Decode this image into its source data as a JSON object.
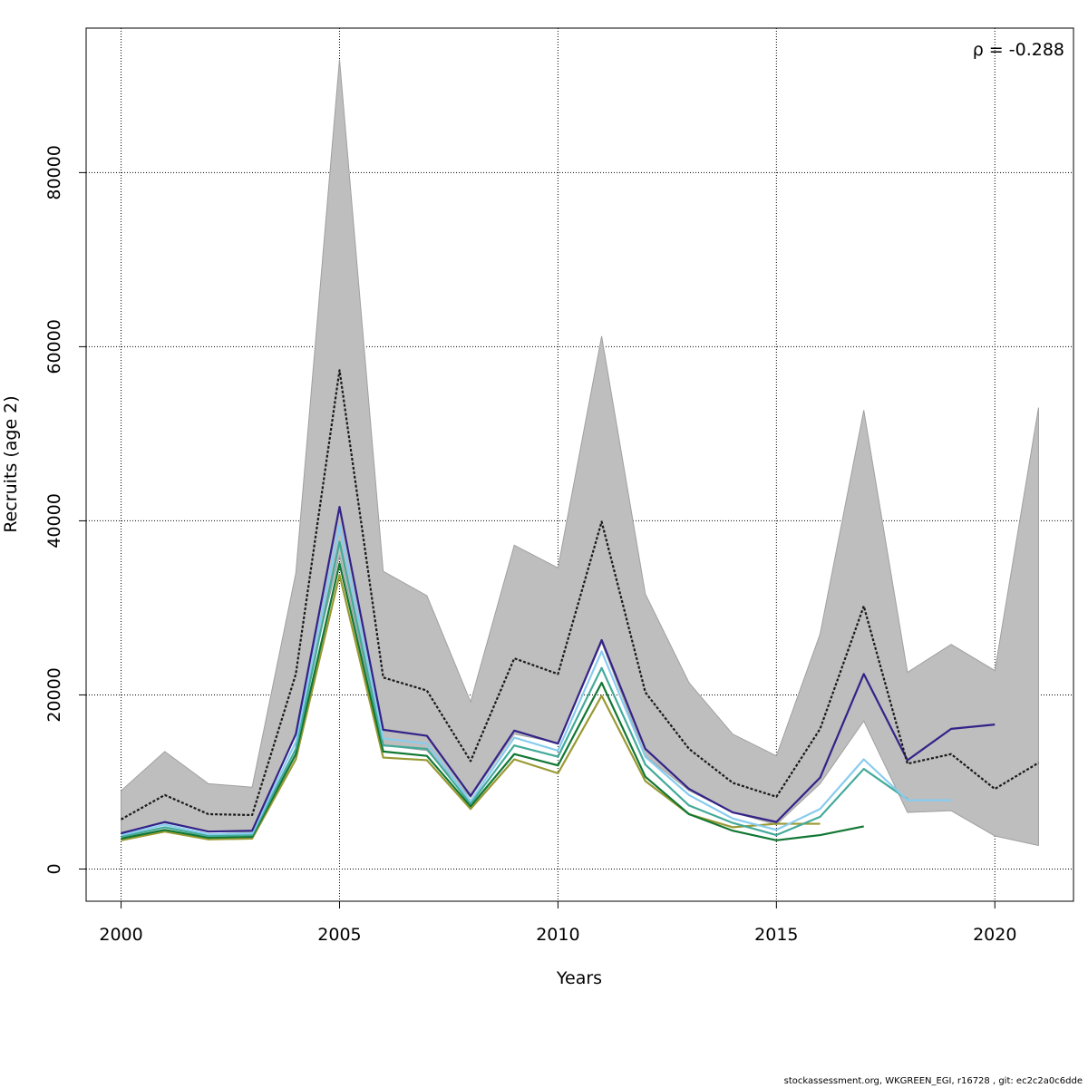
{
  "chart_data": {
    "type": "line",
    "xlabel": "Years",
    "ylabel": "Recruits (age 2)",
    "xlim": [
      1999.2,
      2021.8
    ],
    "ylim": [
      -3700,
      96600
    ],
    "x_ticks": [
      2000,
      2005,
      2010,
      2015,
      2020
    ],
    "y_ticks": [
      0,
      20000,
      40000,
      60000,
      80000
    ],
    "grid": true,
    "annotation": "ρ = -0.288",
    "confidence_band": {
      "color": "#bebebe",
      "x": [
        2000,
        2001,
        2002,
        2003,
        2004,
        2005,
        2006,
        2007,
        2008,
        2009,
        2010,
        2011,
        2012,
        2013,
        2014,
        2015,
        2016,
        2017,
        2018,
        2019,
        2020,
        2021
      ],
      "lower": [
        4200,
        5300,
        4300,
        4200,
        15500,
        36000,
        14200,
        13600,
        8200,
        15500,
        14500,
        26000,
        13000,
        9000,
        6500,
        5100,
        9800,
        17000,
        6500,
        6700,
        3800,
        2700
      ],
      "upper": [
        9000,
        13500,
        9800,
        9400,
        34000,
        93000,
        34200,
        31400,
        19200,
        37200,
        34600,
        61200,
        31600,
        21400,
        15500,
        13000,
        27000,
        52700,
        22600,
        25800,
        22800,
        53000
      ]
    },
    "series": [
      {
        "color": "#1a1a1a",
        "dash": true,
        "x": [
          2000,
          2001,
          2002,
          2003,
          2004,
          2005,
          2006,
          2007,
          2008,
          2009,
          2010,
          2011,
          2012,
          2013,
          2014,
          2015,
          2016,
          2017,
          2018,
          2019,
          2020,
          2021
        ],
        "values": [
          5700,
          8500,
          6300,
          6200,
          22400,
          57300,
          22000,
          20500,
          12400,
          24200,
          22400,
          39900,
          20300,
          13800,
          9900,
          8300,
          16100,
          30200,
          12100,
          13200,
          9200,
          12200
        ]
      },
      {
        "color": "#332288",
        "x": [
          2000,
          2001,
          2002,
          2003,
          2004,
          2005,
          2006,
          2007,
          2008,
          2009,
          2010,
          2011,
          2012,
          2013,
          2014,
          2015,
          2016,
          2017,
          2018,
          2019,
          2020
        ],
        "values": [
          4100,
          5400,
          4300,
          4400,
          15500,
          41600,
          16000,
          15300,
          8400,
          15900,
          14400,
          26300,
          13800,
          9200,
          6500,
          5400,
          10500,
          22400,
          12500,
          16100,
          16600
        ]
      },
      {
        "color": "#88ccee",
        "x": [
          2000,
          2001,
          2002,
          2003,
          2004,
          2005,
          2006,
          2007,
          2008,
          2009,
          2010,
          2011,
          2012,
          2013,
          2014,
          2015,
          2016,
          2017,
          2018,
          2019
        ],
        "values": [
          3900,
          5100,
          4000,
          4100,
          14600,
          39500,
          15000,
          14400,
          7800,
          15100,
          13600,
          25000,
          12900,
          8500,
          5800,
          4500,
          6900,
          12600,
          7900,
          7900
        ]
      },
      {
        "color": "#44aa99",
        "x": [
          2000,
          2001,
          2002,
          2003,
          2004,
          2005,
          2006,
          2007,
          2008,
          2009,
          2010,
          2011,
          2012,
          2013,
          2014,
          2015,
          2016,
          2017,
          2018
        ],
        "values": [
          3700,
          4800,
          3800,
          3900,
          13800,
          37600,
          14200,
          13800,
          7500,
          14200,
          12900,
          23100,
          12000,
          7300,
          5300,
          3900,
          6000,
          11500,
          8000
        ]
      },
      {
        "color": "#117733",
        "x": [
          2000,
          2001,
          2002,
          2003,
          2004,
          2005,
          2006,
          2007,
          2008,
          2009,
          2010,
          2011,
          2012,
          2013,
          2014,
          2015,
          2016,
          2017
        ],
        "values": [
          3500,
          4500,
          3600,
          3700,
          13200,
          35100,
          13500,
          13000,
          7200,
          13200,
          11900,
          21400,
          10600,
          6300,
          4400,
          3300,
          3900,
          4900
        ]
      },
      {
        "color": "#999933",
        "x": [
          2000,
          2001,
          2002,
          2003,
          2004,
          2005,
          2006,
          2007,
          2008,
          2009,
          2010,
          2011,
          2012,
          2013,
          2014,
          2015,
          2016
        ],
        "values": [
          3300,
          4300,
          3400,
          3500,
          12600,
          33800,
          12800,
          12500,
          6900,
          12600,
          11000,
          19900,
          10100,
          6300,
          4800,
          5200,
          5200
        ]
      }
    ]
  },
  "footer": "stockassessment.org, WKGREEN_EGI, r16728 , git: ec2c2a0c6dde"
}
